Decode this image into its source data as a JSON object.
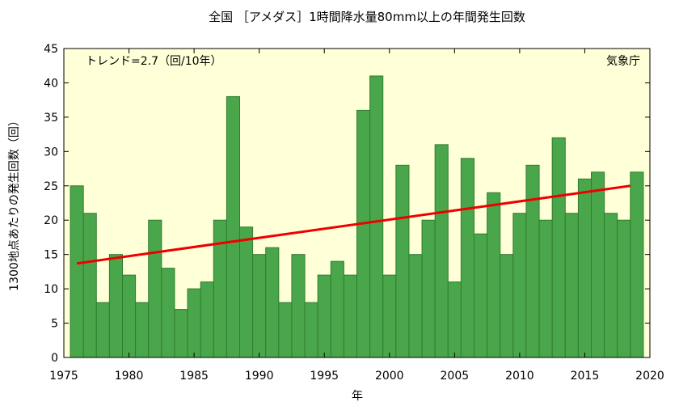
{
  "chart_data": {
    "type": "bar",
    "title": "全国 ［アメダス］1時間降水量80mm以上の年間発生回数",
    "xlabel": "年",
    "ylabel": "1300地点あたりの発生回数（回）",
    "xlim": [
      1975,
      2020
    ],
    "ylim": [
      0,
      45
    ],
    "xticks": [
      1975,
      1980,
      1985,
      1990,
      1995,
      2000,
      2005,
      2010,
      2015,
      2020
    ],
    "yticks": [
      0,
      5,
      10,
      15,
      20,
      25,
      30,
      35,
      40,
      45
    ],
    "x": [
      1976,
      1977,
      1978,
      1979,
      1980,
      1981,
      1982,
      1983,
      1984,
      1985,
      1986,
      1987,
      1988,
      1989,
      1990,
      1991,
      1992,
      1993,
      1994,
      1995,
      1996,
      1997,
      1998,
      1999,
      2000,
      2001,
      2002,
      2003,
      2004,
      2005,
      2006,
      2007,
      2008,
      2009,
      2010,
      2011,
      2012,
      2013,
      2014,
      2015,
      2016,
      2017,
      2018,
      2019
    ],
    "values": [
      25,
      21,
      8,
      15,
      12,
      8,
      20,
      13,
      7,
      10,
      11,
      20,
      38,
      19,
      15,
      16,
      8,
      15,
      8,
      12,
      14,
      12,
      36,
      41,
      12,
      28,
      15,
      20,
      31,
      11,
      29,
      18,
      24,
      15,
      21,
      28,
      20,
      32,
      21,
      26,
      27,
      21,
      20,
      27
    ],
    "trend": {
      "x": [
        1976,
        2018.5
      ],
      "y": [
        13.7,
        25.0
      ]
    },
    "annotations": {
      "trend_text": "トレンド=2.7（回/10年）",
      "source": "気象庁"
    },
    "grid": false,
    "colors": {
      "bar_fill": "#4aa64a",
      "bar_edge": "#2f7d2f",
      "trend": "#ee0000",
      "plot_bg": "#ffffd8"
    }
  }
}
